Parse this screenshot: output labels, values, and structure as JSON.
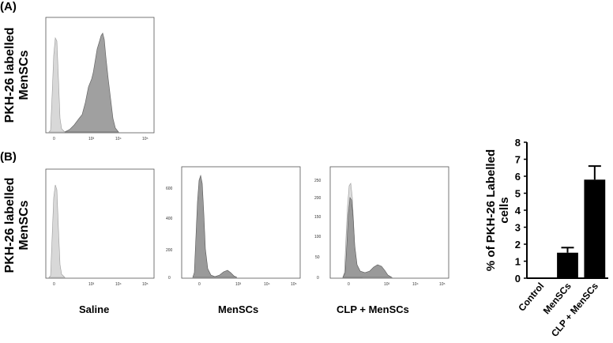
{
  "panels": {
    "a_label": "(A)",
    "b_label": "(B)",
    "a_ylabel_line1": "PKH-26 labelled",
    "a_ylabel_line2": "MenSCs",
    "b_ylabel_line1": "PKH-26 labelled",
    "b_ylabel_line2": "MenSCs"
  },
  "histograms": {
    "x_ticks": [
      "0",
      "10³",
      "10⁴",
      "10⁵"
    ],
    "plots": [
      {
        "id": "a",
        "xlabel": "",
        "y_ticks": []
      },
      {
        "id": "saline",
        "xlabel": "Saline",
        "y_ticks": []
      },
      {
        "id": "mensc",
        "xlabel": "MenSCs",
        "y_ticks": [
          "0",
          "200",
          "400",
          "600"
        ]
      },
      {
        "id": "clp",
        "xlabel": "CLP + MenSCs",
        "y_ticks": [
          "0",
          "50",
          "100",
          "150",
          "200",
          "250"
        ]
      }
    ]
  },
  "chart_data": {
    "type": "bar",
    "categories": [
      "Control",
      "MenSCs",
      "CLP + MenSCs"
    ],
    "values": [
      0.02,
      1.5,
      5.8
    ],
    "errors": [
      0.0,
      0.3,
      0.8
    ],
    "ylabel": "% of PKH-26 Labelled cells",
    "xlabel": "",
    "ylim": [
      0,
      8
    ],
    "yticks": [
      0,
      1,
      2,
      3,
      4,
      5,
      6,
      7,
      8
    ],
    "bar_color": "#000000"
  }
}
